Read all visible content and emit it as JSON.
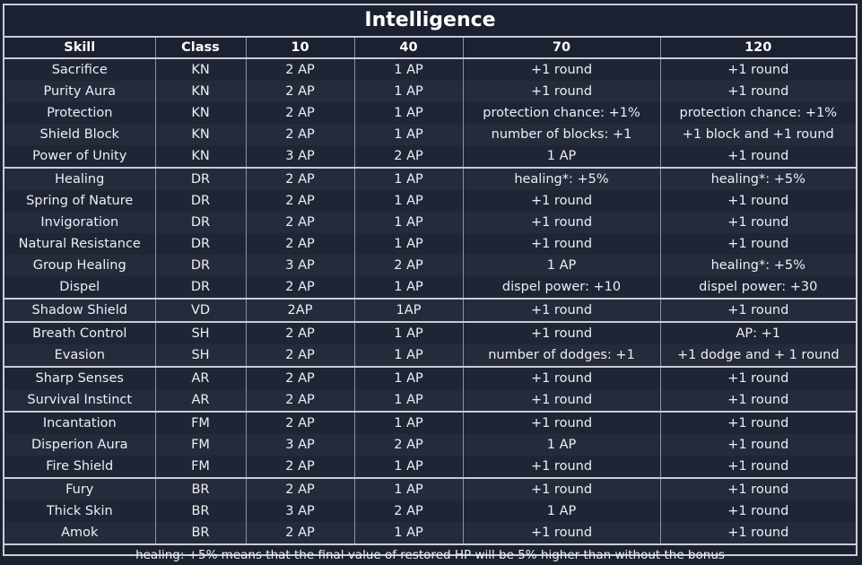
{
  "title": "Intelligence",
  "columns": [
    "Skill",
    "Class",
    "10",
    "40",
    "70",
    "120"
  ],
  "rows": [
    [
      "Sacrifice",
      "KN",
      "2 AP",
      "1 AP",
      "+1 round",
      "+1 round"
    ],
    [
      "Purity Aura",
      "KN",
      "2 AP",
      "1 AP",
      "+1 round",
      "+1 round"
    ],
    [
      "Protection",
      "KN",
      "2 AP",
      "1 AP",
      "protection chance: +1%",
      "protection chance: +1%"
    ],
    [
      "Shield Block",
      "KN",
      "2 AP",
      "1 AP",
      "number of blocks: +1",
      "+1 block and +1 round"
    ],
    [
      "Power of Unity",
      "KN",
      "3 AP",
      "2 AP",
      "1 AP",
      "+1 round"
    ],
    [
      "Healing",
      "DR",
      "2 AP",
      "1 AP",
      "healing*: +5%",
      "healing*: +5%"
    ],
    [
      "Spring of Nature",
      "DR",
      "2 AP",
      "1 AP",
      "+1 round",
      "+1 round"
    ],
    [
      "Invigoration",
      "DR",
      "2 AP",
      "1 AP",
      "+1 round",
      "+1 round"
    ],
    [
      "Natural Resistance",
      "DR",
      "2 AP",
      "1 AP",
      "+1 round",
      "+1 round"
    ],
    [
      "Group Healing",
      "DR",
      "3 AP",
      "2 AP",
      "1 AP",
      "healing*: +5%"
    ],
    [
      "Dispel",
      "DR",
      "2 AP",
      "1 AP",
      "dispel power: +10",
      "dispel power: +30"
    ],
    [
      "Shadow Shield",
      "VD",
      "2AP",
      "1AP",
      "+1 round",
      "+1 round"
    ],
    [
      "Breath Control",
      "SH",
      "2 AP",
      "1 AP",
      "+1 round",
      "AP: +1"
    ],
    [
      "Evasion",
      "SH",
      "2 AP",
      "1 AP",
      "number of dodges: +1",
      "+1 dodge and + 1 round"
    ],
    [
      "Sharp Senses",
      "AR",
      "2 AP",
      "1 AP",
      "+1 round",
      "+1 round"
    ],
    [
      "Survival Instinct",
      "AR",
      "2 AP",
      "1 AP",
      "+1 round",
      "+1 round"
    ],
    [
      "Incantation",
      "FM",
      "2 AP",
      "1 AP",
      "+1 round",
      "+1 round"
    ],
    [
      "Disperion Aura",
      "FM",
      "3 AP",
      "2 AP",
      "1 AP",
      "+1 round"
    ],
    [
      "Fire Shield",
      "FM",
      "2 AP",
      "1 AP",
      "+1 round",
      "+1 round"
    ],
    [
      "Fury",
      "BR",
      "2 AP",
      "1 AP",
      "+1 round",
      "+1 round"
    ],
    [
      "Thick Skin",
      "BR",
      "3 AP",
      "2 AP",
      "1 AP",
      "+1 round"
    ],
    [
      "Amok",
      "BR",
      "2 AP",
      "1 AP",
      "+1 round",
      "+1 round"
    ]
  ],
  "footnote": "healing: +5% means that the final value of restored HP will be 5% higher than without the bonus",
  "colors": {
    "background": "#1b2130",
    "border": "#c7ccd6",
    "text": "#eceff4"
  }
}
